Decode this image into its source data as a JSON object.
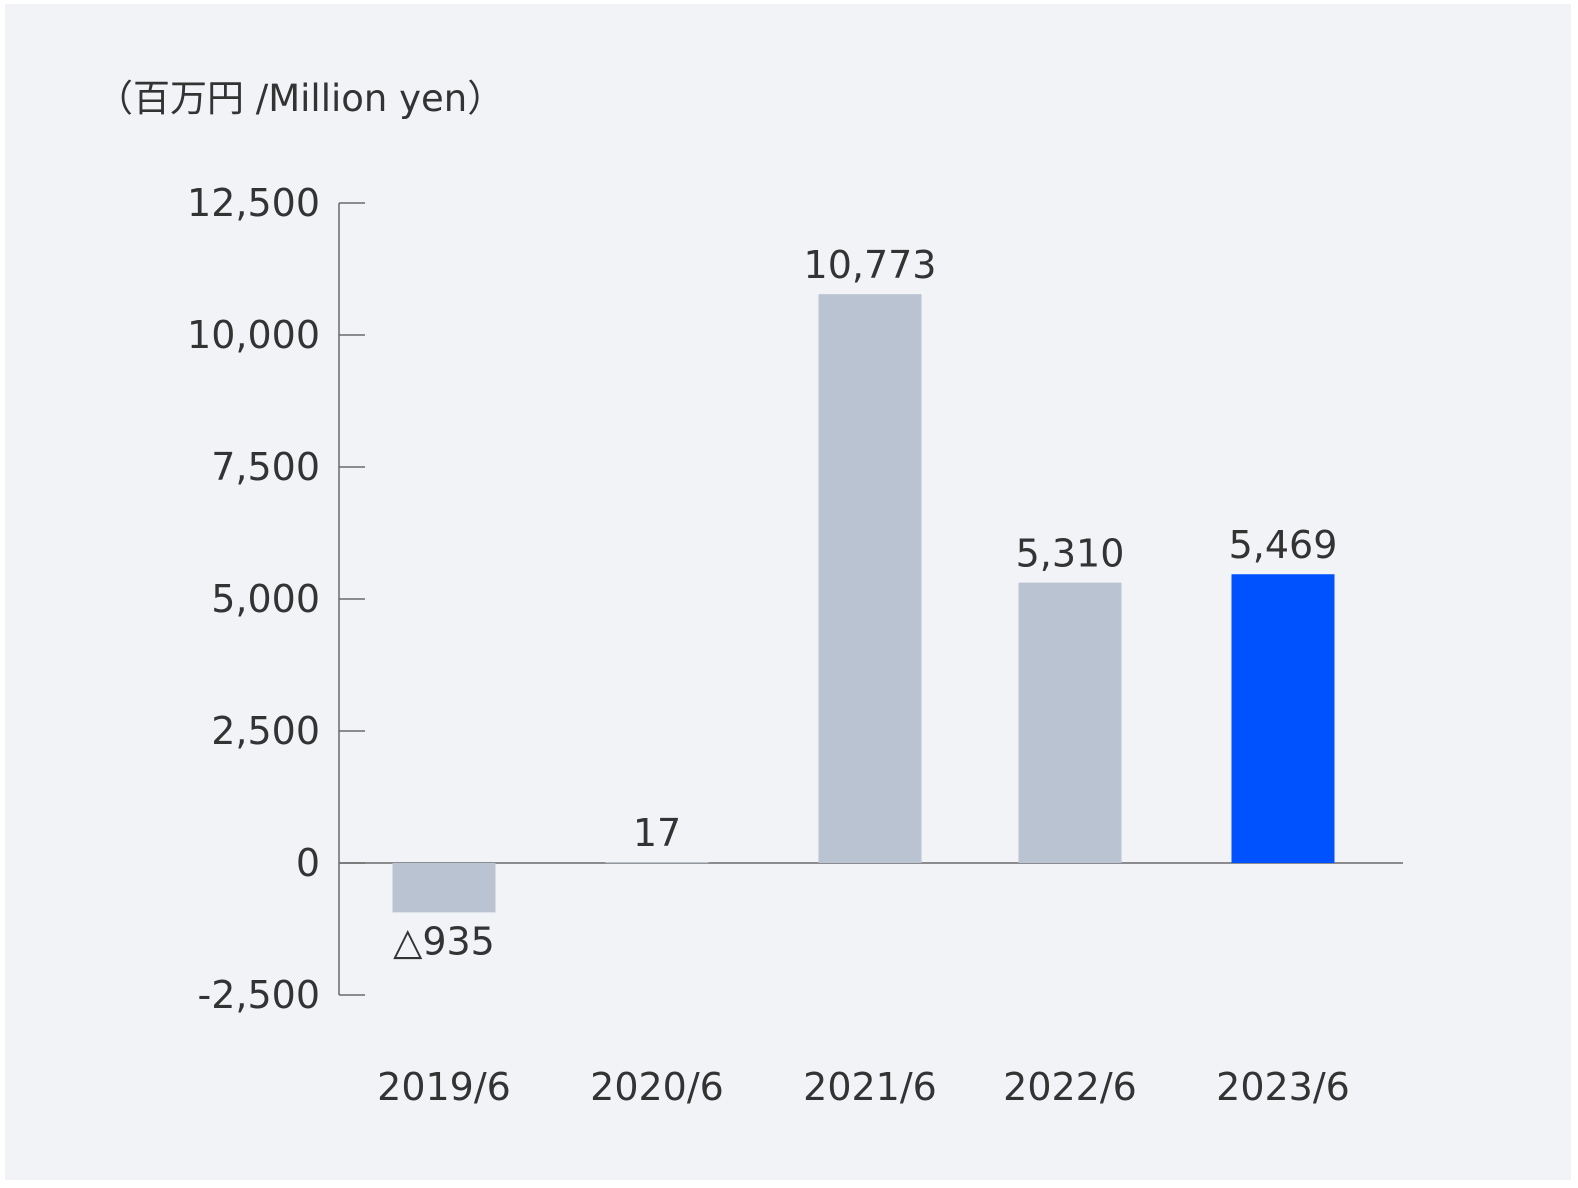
{
  "chart_data": {
    "type": "bar",
    "unit_label": "（百万円 /Million yen）",
    "categories": [
      "2019/6",
      "2020/6",
      "2021/6",
      "2022/6",
      "2023/6"
    ],
    "values": [
      -935,
      17,
      10773,
      5310,
      5469
    ],
    "value_labels": [
      "△935",
      "17",
      "10,773",
      "5,310",
      "5,469"
    ],
    "ylim": [
      -2500,
      12500
    ],
    "yticks": [
      12500,
      10000,
      7500,
      5000,
      2500,
      0,
      -2500
    ],
    "ytick_labels": [
      "12,500",
      "10,000",
      "7,500",
      "5,000",
      "2,500",
      "0",
      "-2,500"
    ],
    "colors": {
      "bar": "#b9c3d2",
      "highlight": "#0051ff",
      "axis": "#6b6b6b",
      "background": "#f2f3f7"
    },
    "highlight_index": 4
  }
}
